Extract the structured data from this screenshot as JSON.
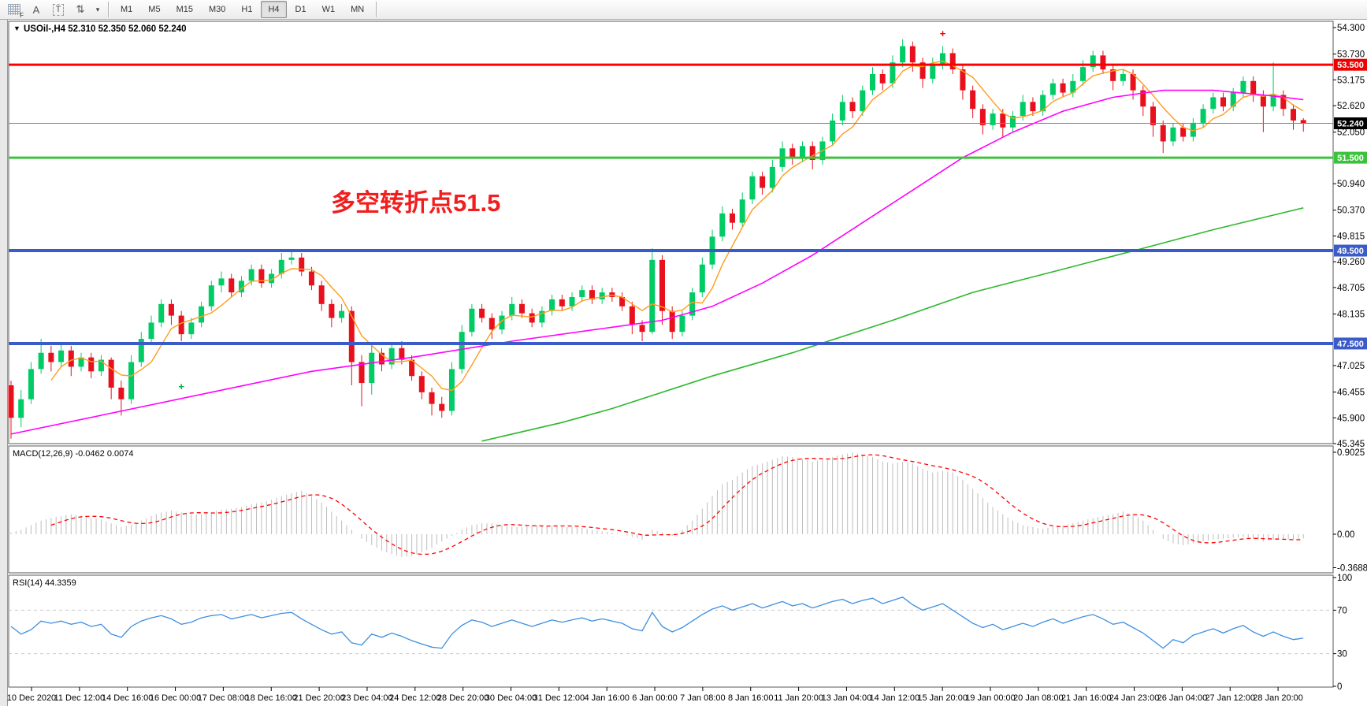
{
  "toolbar": {
    "icons": [
      {
        "name": "grid-crosshair-icon",
        "glyph": "grid",
        "sub": "F"
      },
      {
        "name": "text-label-icon",
        "glyph": "A"
      },
      {
        "name": "text-box-icon",
        "glyph": "T"
      },
      {
        "name": "arrows-objects-icon",
        "glyph": "⇅"
      },
      {
        "name": "dropdown-caret-icon",
        "glyph": "▾"
      }
    ],
    "timeframes": [
      "M1",
      "M5",
      "M15",
      "M30",
      "H1",
      "H4",
      "D1",
      "W1",
      "MN"
    ],
    "active_timeframe": "H4"
  },
  "legend": {
    "text": "USOil-,H4  52.310 52.350 52.060 52.240"
  },
  "panels": {
    "macd_label": "MACD(12,26,9) -0.0462 0.0074",
    "rsi_label": "RSI(14) 44.3359"
  },
  "annotation": {
    "text": "多空转折点51.5",
    "color": "#f21d1d"
  },
  "price_axis": {
    "ticks": [
      54.3,
      53.73,
      53.175,
      52.62,
      52.05,
      50.94,
      50.37,
      49.815,
      49.26,
      48.705,
      48.135,
      47.025,
      46.455,
      45.9,
      45.345
    ],
    "badges": [
      {
        "label": "53.500",
        "price": 53.5,
        "color": "#ee0000"
      },
      {
        "label": "52.240",
        "price": 52.24,
        "color": "#000000"
      },
      {
        "label": "51.500",
        "price": 51.5,
        "color": "#3cc23c"
      },
      {
        "label": "49.500",
        "price": 49.5,
        "color": "#3a5bc8"
      },
      {
        "label": "47.500",
        "price": 47.5,
        "color": "#3a5bc8"
      }
    ]
  },
  "macd_axis": {
    "ticks": [
      {
        "label": "0.9025",
        "value": 0.9025
      },
      {
        "label": "0.00",
        "value": 0.0
      },
      {
        "label": "-0.3688",
        "value": -0.3688
      }
    ]
  },
  "rsi_axis": {
    "ticks": [
      100,
      70,
      30,
      0
    ]
  },
  "chart_data": {
    "type": "candlestick",
    "symbol": "USOil-",
    "timeframe": "H4",
    "last_ohlc": {
      "open": 52.31,
      "high": 52.35,
      "low": 52.06,
      "close": 52.24
    },
    "price_range": [
      45.345,
      54.436
    ],
    "candle_up_color": "#00cc66",
    "candle_down_color": "#e8101c",
    "candles": [
      [
        46.6,
        46.7,
        45.45,
        45.9
      ],
      [
        45.9,
        46.5,
        45.7,
        46.3
      ],
      [
        46.3,
        47.1,
        46.2,
        46.95
      ],
      [
        46.95,
        47.6,
        46.85,
        47.3
      ],
      [
        47.3,
        47.45,
        46.9,
        47.1
      ],
      [
        47.1,
        47.5,
        47.0,
        47.35
      ],
      [
        47.35,
        47.45,
        46.8,
        47.0
      ],
      [
        47.0,
        47.3,
        46.9,
        47.2
      ],
      [
        47.2,
        47.3,
        46.75,
        46.9
      ],
      [
        46.9,
        47.25,
        46.8,
        47.15
      ],
      [
        47.15,
        47.2,
        46.3,
        46.55
      ],
      [
        46.55,
        46.7,
        45.95,
        46.3
      ],
      [
        46.3,
        47.25,
        46.2,
        47.1
      ],
      [
        47.1,
        47.75,
        47.0,
        47.6
      ],
      [
        47.6,
        48.1,
        47.5,
        47.95
      ],
      [
        47.95,
        48.45,
        47.85,
        48.35
      ],
      [
        48.35,
        48.45,
        47.9,
        48.1
      ],
      [
        48.1,
        48.2,
        47.55,
        47.7
      ],
      [
        47.7,
        48.05,
        47.6,
        47.95
      ],
      [
        47.95,
        48.4,
        47.85,
        48.3
      ],
      [
        48.3,
        48.85,
        48.2,
        48.75
      ],
      [
        48.75,
        49.05,
        48.6,
        48.9
      ],
      [
        48.9,
        49.0,
        48.5,
        48.6
      ],
      [
        48.6,
        48.95,
        48.5,
        48.85
      ],
      [
        48.85,
        49.2,
        48.75,
        49.1
      ],
      [
        49.1,
        49.2,
        48.7,
        48.8
      ],
      [
        48.8,
        49.1,
        48.7,
        49.0
      ],
      [
        49.0,
        49.45,
        48.9,
        49.3
      ],
      [
        49.3,
        49.5,
        49.2,
        49.35
      ],
      [
        49.35,
        49.45,
        48.95,
        49.05
      ],
      [
        49.05,
        49.15,
        48.65,
        48.75
      ],
      [
        48.75,
        48.85,
        48.2,
        48.35
      ],
      [
        48.35,
        48.45,
        47.85,
        48.05
      ],
      [
        48.05,
        48.35,
        47.95,
        48.2
      ],
      [
        48.2,
        48.3,
        46.6,
        47.1
      ],
      [
        47.1,
        47.25,
        46.15,
        46.65
      ],
      [
        46.65,
        47.45,
        46.4,
        47.3
      ],
      [
        47.3,
        47.4,
        46.9,
        47.05
      ],
      [
        47.05,
        47.5,
        46.95,
        47.4
      ],
      [
        47.4,
        47.55,
        47.05,
        47.15
      ],
      [
        47.15,
        47.25,
        46.7,
        46.8
      ],
      [
        46.8,
        46.9,
        46.3,
        46.45
      ],
      [
        46.45,
        46.55,
        45.95,
        46.2
      ],
      [
        46.2,
        46.35,
        45.9,
        46.05
      ],
      [
        46.05,
        47.1,
        45.95,
        46.95
      ],
      [
        46.95,
        47.9,
        46.85,
        47.75
      ],
      [
        47.75,
        48.35,
        47.65,
        48.25
      ],
      [
        48.25,
        48.35,
        47.95,
        48.05
      ],
      [
        48.05,
        48.15,
        47.6,
        47.8
      ],
      [
        47.8,
        48.2,
        47.7,
        48.1
      ],
      [
        48.1,
        48.5,
        48.0,
        48.35
      ],
      [
        48.35,
        48.45,
        48.05,
        48.15
      ],
      [
        48.15,
        48.25,
        47.85,
        47.95
      ],
      [
        47.95,
        48.3,
        47.85,
        48.2
      ],
      [
        48.2,
        48.55,
        48.1,
        48.45
      ],
      [
        48.45,
        48.55,
        48.2,
        48.3
      ],
      [
        48.3,
        48.6,
        48.2,
        48.5
      ],
      [
        48.5,
        48.75,
        48.4,
        48.65
      ],
      [
        48.65,
        48.75,
        48.35,
        48.45
      ],
      [
        48.45,
        48.7,
        48.35,
        48.6
      ],
      [
        48.6,
        48.7,
        48.4,
        48.5
      ],
      [
        48.5,
        48.6,
        48.2,
        48.3
      ],
      [
        48.3,
        48.4,
        47.7,
        47.9
      ],
      [
        47.9,
        48.0,
        47.55,
        47.75
      ],
      [
        47.75,
        49.55,
        47.7,
        49.3
      ],
      [
        49.3,
        49.4,
        47.9,
        48.2
      ],
      [
        48.2,
        48.3,
        47.6,
        47.75
      ],
      [
        47.75,
        48.2,
        47.65,
        48.1
      ],
      [
        48.1,
        48.7,
        48.0,
        48.6
      ],
      [
        48.6,
        49.35,
        48.5,
        49.2
      ],
      [
        49.2,
        49.95,
        49.1,
        49.8
      ],
      [
        49.8,
        50.45,
        49.7,
        50.3
      ],
      [
        50.3,
        50.4,
        49.95,
        50.1
      ],
      [
        50.1,
        50.75,
        50.0,
        50.6
      ],
      [
        50.6,
        51.2,
        50.5,
        51.1
      ],
      [
        51.1,
        51.2,
        50.7,
        50.85
      ],
      [
        50.85,
        51.45,
        50.75,
        51.3
      ],
      [
        51.3,
        51.85,
        51.2,
        51.7
      ],
      [
        51.7,
        51.8,
        51.35,
        51.5
      ],
      [
        51.5,
        51.85,
        51.4,
        51.75
      ],
      [
        51.75,
        51.85,
        51.25,
        51.45
      ],
      [
        51.45,
        51.95,
        51.35,
        51.85
      ],
      [
        51.85,
        52.45,
        51.75,
        52.3
      ],
      [
        52.3,
        52.85,
        52.2,
        52.7
      ],
      [
        52.7,
        52.8,
        52.35,
        52.5
      ],
      [
        52.5,
        53.05,
        52.4,
        52.95
      ],
      [
        52.95,
        53.45,
        52.85,
        53.3
      ],
      [
        53.3,
        53.4,
        52.95,
        53.1
      ],
      [
        53.1,
        53.7,
        53.0,
        53.55
      ],
      [
        53.55,
        54.05,
        53.45,
        53.9
      ],
      [
        53.9,
        54.0,
        53.35,
        53.55
      ],
      [
        53.55,
        53.65,
        53.0,
        53.2
      ],
      [
        53.2,
        53.65,
        53.1,
        53.5
      ],
      [
        53.5,
        53.9,
        53.4,
        53.75
      ],
      [
        53.75,
        53.85,
        53.3,
        53.4
      ],
      [
        53.4,
        53.5,
        52.75,
        52.95
      ],
      [
        52.95,
        53.05,
        52.35,
        52.55
      ],
      [
        52.55,
        52.65,
        52.0,
        52.2
      ],
      [
        52.2,
        52.55,
        52.1,
        52.45
      ],
      [
        52.45,
        52.55,
        51.95,
        52.15
      ],
      [
        52.15,
        52.5,
        52.05,
        52.4
      ],
      [
        52.4,
        52.85,
        52.3,
        52.7
      ],
      [
        52.7,
        52.8,
        52.4,
        52.5
      ],
      [
        52.5,
        52.95,
        52.4,
        52.85
      ],
      [
        52.85,
        53.2,
        52.75,
        53.1
      ],
      [
        53.1,
        53.2,
        52.8,
        52.9
      ],
      [
        52.9,
        53.3,
        52.8,
        53.15
      ],
      [
        53.15,
        53.6,
        53.05,
        53.45
      ],
      [
        53.45,
        53.8,
        53.35,
        53.7
      ],
      [
        53.7,
        53.8,
        53.3,
        53.4
      ],
      [
        53.4,
        53.5,
        52.95,
        53.15
      ],
      [
        53.15,
        53.4,
        53.05,
        53.3
      ],
      [
        53.3,
        53.4,
        52.75,
        52.95
      ],
      [
        52.95,
        53.05,
        52.4,
        52.6
      ],
      [
        52.6,
        52.7,
        51.95,
        52.2
      ],
      [
        52.2,
        52.3,
        51.6,
        51.85
      ],
      [
        51.85,
        52.25,
        51.75,
        52.15
      ],
      [
        52.15,
        52.25,
        51.85,
        51.95
      ],
      [
        51.95,
        52.35,
        51.85,
        52.25
      ],
      [
        52.25,
        52.65,
        52.15,
        52.55
      ],
      [
        52.55,
        52.9,
        52.45,
        52.8
      ],
      [
        52.8,
        52.9,
        52.5,
        52.6
      ],
      [
        52.6,
        53.0,
        52.5,
        52.9
      ],
      [
        52.9,
        53.25,
        52.8,
        53.15
      ],
      [
        53.15,
        53.25,
        52.7,
        52.85
      ],
      [
        52.85,
        52.95,
        52.05,
        52.6
      ],
      [
        52.6,
        53.55,
        52.5,
        52.85
      ],
      [
        52.85,
        52.95,
        52.4,
        52.55
      ],
      [
        52.55,
        52.65,
        52.1,
        52.3
      ],
      [
        52.31,
        52.35,
        52.06,
        52.24
      ]
    ],
    "overlays": {
      "ma_fast": {
        "color": "#ff9c1c",
        "period": 5
      },
      "ma_mid": {
        "color": "#ff00ff",
        "points": [
          [
            0,
            45.55
          ],
          [
            10,
            46.0
          ],
          [
            20,
            46.45
          ],
          [
            30,
            46.9
          ],
          [
            40,
            47.2
          ],
          [
            50,
            47.55
          ],
          [
            60,
            47.85
          ],
          [
            65,
            48.0
          ],
          [
            70,
            48.3
          ],
          [
            75,
            48.8
          ],
          [
            80,
            49.4
          ],
          [
            85,
            50.1
          ],
          [
            90,
            50.8
          ],
          [
            95,
            51.5
          ],
          [
            100,
            52.05
          ],
          [
            105,
            52.5
          ],
          [
            110,
            52.8
          ],
          [
            115,
            52.95
          ],
          [
            120,
            52.95
          ],
          [
            125,
            52.85
          ],
          [
            129,
            52.75
          ]
        ]
      },
      "ma_slow": {
        "color": "#2db82d",
        "points": [
          [
            47,
            45.4
          ],
          [
            55,
            45.8
          ],
          [
            60,
            46.1
          ],
          [
            70,
            46.8
          ],
          [
            78,
            47.3
          ],
          [
            88,
            48.0
          ],
          [
            96,
            48.6
          ],
          [
            105,
            49.1
          ],
          [
            113,
            49.55
          ],
          [
            120,
            49.95
          ],
          [
            129,
            50.42
          ]
        ]
      }
    },
    "hlines": [
      {
        "price": 53.5,
        "color": "#ff0000",
        "width": 3
      },
      {
        "price": 51.5,
        "color": "#3cc23c",
        "width": 3
      },
      {
        "price": 49.5,
        "color": "#3a5bc8",
        "width": 4
      },
      {
        "price": 47.5,
        "color": "#3a5bc8",
        "width": 4
      },
      {
        "price": 52.24,
        "color": "#848484",
        "width": 1
      }
    ],
    "markers": [
      {
        "bar": 17,
        "price": 46.5,
        "glyph": "+",
        "color": "#00b050"
      },
      {
        "bar": 93,
        "price": 54.1,
        "glyph": "+",
        "color": "#ee0000"
      }
    ],
    "macd": {
      "hist_color": "#bdbdbd",
      "signal_color": "#ff0000",
      "signal_period": 9,
      "main": [
        0.02,
        0.05,
        0.1,
        0.15,
        0.18,
        0.2,
        0.22,
        0.2,
        0.18,
        0.16,
        0.12,
        0.08,
        0.1,
        0.15,
        0.2,
        0.24,
        0.26,
        0.24,
        0.22,
        0.22,
        0.24,
        0.27,
        0.28,
        0.3,
        0.33,
        0.35,
        0.38,
        0.42,
        0.45,
        0.48,
        0.42,
        0.35,
        0.25,
        0.15,
        0.05,
        -0.05,
        -0.12,
        -0.18,
        -0.22,
        -0.25,
        -0.24,
        -0.2,
        -0.15,
        -0.08,
        -0.02,
        0.05,
        0.1,
        0.12,
        0.12,
        0.1,
        0.08,
        0.08,
        0.1,
        0.1,
        0.09,
        0.08,
        0.08,
        0.07,
        0.05,
        0.03,
        0.02,
        0.0,
        -0.03,
        -0.06,
        0.05,
        0.02,
        -0.02,
        0.05,
        0.15,
        0.28,
        0.42,
        0.55,
        0.6,
        0.68,
        0.75,
        0.78,
        0.82,
        0.86,
        0.85,
        0.83,
        0.8,
        0.82,
        0.85,
        0.88,
        0.9,
        0.88,
        0.85,
        0.8,
        0.78,
        0.8,
        0.78,
        0.72,
        0.68,
        0.7,
        0.68,
        0.6,
        0.5,
        0.4,
        0.3,
        0.22,
        0.15,
        0.1,
        0.08,
        0.06,
        0.08,
        0.1,
        0.12,
        0.15,
        0.18,
        0.2,
        0.22,
        0.25,
        0.22,
        0.15,
        0.05,
        -0.05,
        -0.1,
        -0.12,
        -0.1,
        -0.08,
        -0.06,
        -0.05,
        -0.04,
        -0.03,
        -0.05,
        -0.08,
        -0.06,
        -0.05,
        -0.06,
        -0.046
      ]
    },
    "rsi": {
      "color": "#3d8fe0",
      "levels": [
        70,
        30
      ],
      "range": [
        0,
        100
      ],
      "values": [
        55,
        48,
        52,
        60,
        58,
        60,
        57,
        59,
        55,
        57,
        48,
        45,
        55,
        60,
        63,
        65,
        62,
        57,
        59,
        63,
        65,
        66,
        62,
        64,
        66,
        63,
        65,
        67,
        68,
        62,
        57,
        52,
        48,
        50,
        40,
        38,
        48,
        45,
        49,
        46,
        42,
        39,
        36,
        35,
        48,
        56,
        61,
        59,
        55,
        58,
        61,
        58,
        55,
        58,
        61,
        59,
        61,
        63,
        60,
        62,
        60,
        58,
        53,
        51,
        68,
        55,
        50,
        54,
        60,
        66,
        71,
        74,
        70,
        73,
        76,
        72,
        75,
        78,
        74,
        76,
        72,
        75,
        78,
        80,
        76,
        79,
        81,
        76,
        79,
        82,
        75,
        70,
        73,
        76,
        70,
        64,
        58,
        54,
        57,
        52,
        55,
        58,
        55,
        59,
        62,
        58,
        61,
        64,
        66,
        62,
        57,
        59,
        54,
        49,
        42,
        35,
        43,
        40,
        47,
        50,
        53,
        49,
        53,
        56,
        50,
        46,
        50,
        46,
        43,
        44.3
      ]
    },
    "time_labels": [
      "10 Dec 2020",
      "11 Dec 12:00",
      "14 Dec 16:00",
      "16 Dec 00:00",
      "17 Dec 08:00",
      "18 Dec 16:00",
      "21 Dec 20:00",
      "23 Dec 04:00",
      "24 Dec 12:00",
      "28 Dec 20:00",
      "30 Dec 04:00",
      "31 Dec 12:00",
      "4 Jan 16:00",
      "6 Jan 00:00",
      "7 Jan 08:00",
      "8 Jan 16:00",
      "11 Jan 20:00",
      "13 Jan 04:00",
      "14 Jan 12:00",
      "15 Jan 20:00",
      "19 Jan 00:00",
      "20 Jan 08:00",
      "21 Jan 16:00",
      "24 Jan 23:00",
      "26 Jan 04:00",
      "27 Jan 12:00",
      "28 Jan 20:00"
    ]
  }
}
